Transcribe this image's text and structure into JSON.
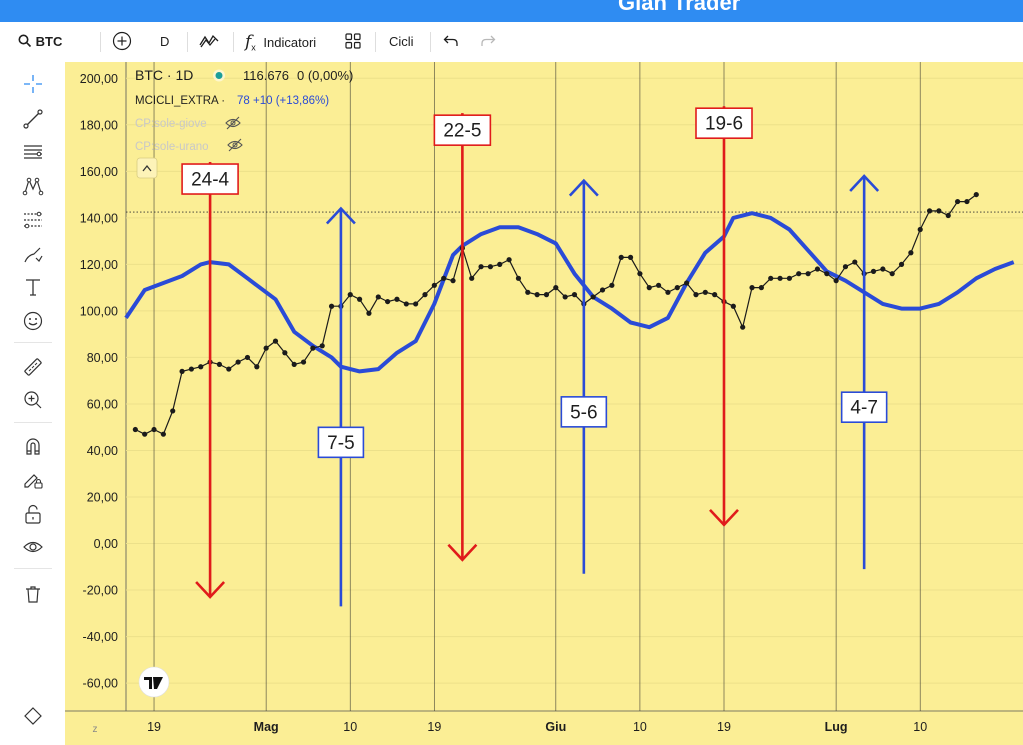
{
  "window": {
    "title": "Gian Trader"
  },
  "toolbar": {
    "symbol": "BTC",
    "interval": "D",
    "indicators_label": "Indicatori",
    "cycles_label": "Cicli"
  },
  "legend": {
    "symbol_line": "BTC · 1D",
    "price": "116.676",
    "change": "0 (0,00%)",
    "indicator_name": "MCICLI_EXTRA ·",
    "indicator_value": "78 +10 (+13,86%)",
    "hidden_1": "CP:sole-giove",
    "hidden_2": "CP:sole-urano"
  },
  "colors": {
    "background": "#fbee95",
    "price_line": "#1b1b1b",
    "cycle_line": "#2a4bd7",
    "down_arrow": "#e01b1b",
    "up_arrow": "#2a4bd7",
    "grid": "#ece08a",
    "vgrid": "#2a2a2a",
    "axis_text": "#1e1e1e"
  },
  "icons": {
    "left_toolbar": [
      "crosshair-icon",
      "trend-line-icon",
      "horizontal-lines-icon",
      "pattern-icon",
      "fib-icon",
      "brush-icon",
      "text-icon",
      "emoji-icon",
      "ruler-icon",
      "zoom-in-icon",
      "magnet-icon",
      "lock-pencil-icon",
      "lock-icon",
      "eye-icon",
      "trash-icon"
    ]
  },
  "chart_data": {
    "type": "line",
    "ylim": [
      -72,
      207
    ],
    "y_ticks": [
      "200,00",
      "180,00",
      "160,00",
      "140,00",
      "120,00",
      "100,00",
      "80,00",
      "60,00",
      "40,00",
      "20,00",
      "0,00",
      "-20,00",
      "-40,00",
      "-60,00"
    ],
    "y_tick_values": [
      200,
      180,
      160,
      140,
      120,
      100,
      80,
      60,
      40,
      20,
      0,
      -20,
      -40,
      -60
    ],
    "xlim": [
      -3,
      93
    ],
    "x_ticks": [
      {
        "label": "19",
        "day": 0,
        "bold": false
      },
      {
        "label": "Mag",
        "day": 12,
        "bold": true
      },
      {
        "label": "10",
        "day": 21,
        "bold": false
      },
      {
        "label": "19",
        "day": 30,
        "bold": false
      },
      {
        "label": "Giu",
        "day": 43,
        "bold": true
      },
      {
        "label": "10",
        "day": 52,
        "bold": false
      },
      {
        "label": "19",
        "day": 61,
        "bold": false
      },
      {
        "label": "Lug",
        "day": 73,
        "bold": true
      },
      {
        "label": "10",
        "day": 82,
        "bold": false
      }
    ],
    "x_axis_corner": "z",
    "dotted_reference": 142.5,
    "series": [
      {
        "kind": "price",
        "x": [
          -2,
          -1,
          0,
          1,
          2,
          3,
          4,
          5,
          6,
          7,
          8,
          9,
          10,
          11,
          12,
          13,
          14,
          15,
          16,
          17,
          18,
          19,
          20,
          21,
          22,
          23,
          24,
          25,
          26,
          27,
          28,
          29,
          30,
          31,
          32,
          33,
          34,
          35,
          36,
          37,
          38,
          39,
          40,
          41,
          42,
          43,
          44,
          45,
          46,
          47,
          48,
          49,
          50,
          51,
          52,
          53,
          54,
          55,
          56,
          57,
          58,
          59,
          60,
          61,
          62,
          63,
          64,
          65,
          66,
          67,
          68,
          69,
          70,
          71,
          72,
          73,
          74,
          75,
          76,
          77,
          78,
          79,
          80,
          81,
          82,
          83,
          84,
          85,
          86,
          87,
          88
        ],
        "values": [
          49,
          47,
          49,
          47,
          57,
          74,
          75,
          76,
          78,
          77,
          75,
          78,
          80,
          76,
          84,
          87,
          82,
          77,
          78,
          84,
          85,
          102,
          102,
          107,
          105,
          99,
          106,
          104,
          105,
          103,
          103,
          107,
          111,
          114,
          113,
          127,
          114,
          119,
          119,
          120,
          122,
          114,
          108,
          107,
          107,
          110,
          106,
          107,
          103,
          106,
          109,
          111,
          123,
          123,
          116,
          110,
          111,
          108,
          110,
          112,
          107,
          108,
          107,
          104,
          102,
          93,
          110,
          110,
          114,
          114,
          114,
          116,
          116,
          118,
          116,
          113,
          119,
          121,
          116,
          117,
          118,
          116,
          120,
          125,
          135,
          143,
          143,
          141,
          147,
          147,
          150
        ]
      },
      {
        "kind": "cycle",
        "x": [
          -3,
          -1,
          1,
          3,
          5,
          6,
          8,
          10,
          11,
          13,
          15,
          17,
          19,
          20,
          22,
          24,
          26,
          28,
          30,
          32,
          33,
          35,
          37,
          39,
          41,
          43,
          45,
          47,
          49,
          51,
          53,
          55,
          57,
          59,
          61,
          62,
          64,
          66,
          68,
          70,
          72,
          74,
          76,
          78,
          80,
          82,
          84,
          86,
          88,
          90,
          92
        ],
        "values": [
          97,
          109,
          112,
          115,
          120,
          121,
          120,
          114,
          111,
          105,
          91,
          85,
          80,
          76,
          74,
          75,
          82,
          87,
          103,
          124,
          128,
          133,
          136,
          136,
          133,
          129,
          116,
          106,
          101,
          95,
          93,
          97,
          112,
          125,
          132,
          140,
          142,
          140,
          135,
          126,
          117,
          113,
          108,
          103,
          101,
          101,
          103,
          108,
          114,
          118,
          121
        ]
      }
    ],
    "annotations": [
      {
        "label": "24-4",
        "direction": "down",
        "day": 6,
        "y_start": 164,
        "y_end": -23
      },
      {
        "label": "7-5",
        "direction": "up",
        "day": 20,
        "y_start": -27,
        "y_end": 144
      },
      {
        "label": "22-5",
        "direction": "down",
        "day": 33,
        "y_start": 185,
        "y_end": -7
      },
      {
        "label": "5-6",
        "direction": "up",
        "day": 46,
        "y_start": -13,
        "y_end": 156
      },
      {
        "label": "19-6",
        "direction": "down",
        "day": 61,
        "y_start": 188,
        "y_end": 8
      },
      {
        "label": "4-7",
        "direction": "up",
        "day": 76,
        "y_start": -11,
        "y_end": 158
      }
    ]
  }
}
